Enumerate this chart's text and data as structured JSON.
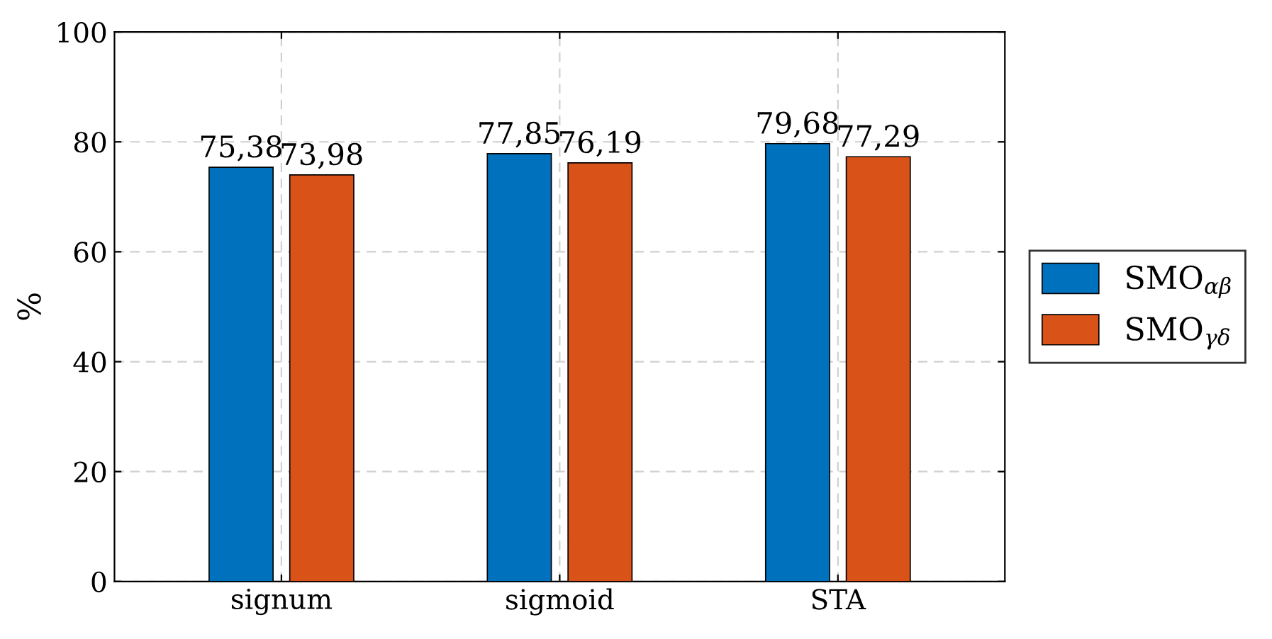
{
  "chart_data": {
    "type": "bar",
    "ylabel": "%",
    "categories": [
      "signum",
      "sigmoid",
      "STA"
    ],
    "series": [
      {
        "name": "SMO$_{αβ}$",
        "color": "#0072bd",
        "values": [
          75.38,
          77.85,
          79.68
        ],
        "value_labels": [
          "75,38",
          "77,85",
          "79,68"
        ]
      },
      {
        "name": "SMO$_{γδ}$",
        "color": "#d95319",
        "values": [
          73.98,
          76.19,
          77.29
        ],
        "value_labels": [
          "73,98",
          "76,19",
          "77,29"
        ]
      }
    ],
    "ylim": [
      0,
      100
    ],
    "yticks": [
      0,
      20,
      40,
      60,
      80,
      100
    ],
    "grid": true,
    "legend": "right"
  }
}
